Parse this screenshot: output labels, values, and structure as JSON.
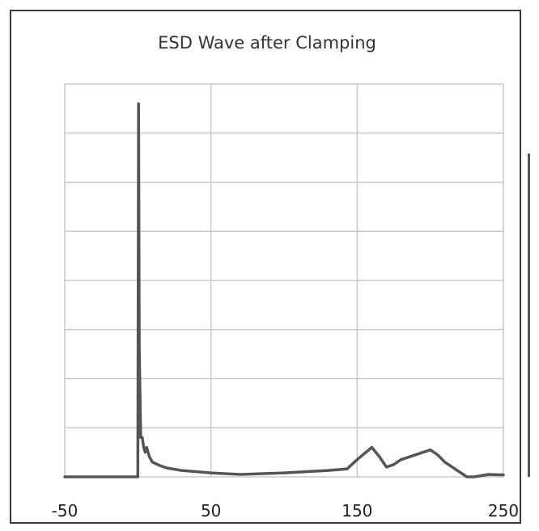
{
  "chart_data": {
    "type": "line",
    "title": "ESD Wave after Clamping",
    "xlabel": "",
    "ylabel": "",
    "xlim": [
      -50,
      250
    ],
    "xticks": [
      -50,
      50,
      150,
      250
    ],
    "xtick_labels": [
      "-50",
      "50",
      "150",
      "250"
    ],
    "ylim": [
      0,
      8
    ],
    "y_gridlines": 8,
    "grid": true,
    "legend": "none",
    "line_color": "#555555",
    "series": [
      {
        "x": [
          -50,
          -2,
          -1,
          0,
          0.5,
          1,
          2,
          3,
          4,
          5,
          6,
          8,
          10,
          15,
          20,
          30,
          50,
          70,
          100,
          130,
          143,
          150,
          160,
          165,
          170,
          175,
          180,
          190,
          200,
          205,
          210,
          220,
          225,
          230,
          240,
          250
        ],
        "y": [
          0,
          0,
          0,
          0,
          7.6,
          2.6,
          0.8,
          0.8,
          0.6,
          0.5,
          0.6,
          0.4,
          0.3,
          0.23,
          0.18,
          0.13,
          0.08,
          0.05,
          0.08,
          0.13,
          0.16,
          0.35,
          0.6,
          0.42,
          0.2,
          0.25,
          0.35,
          0.45,
          0.55,
          0.45,
          0.3,
          0.1,
          0,
          0,
          0.05,
          0.04
        ]
      }
    ]
  }
}
